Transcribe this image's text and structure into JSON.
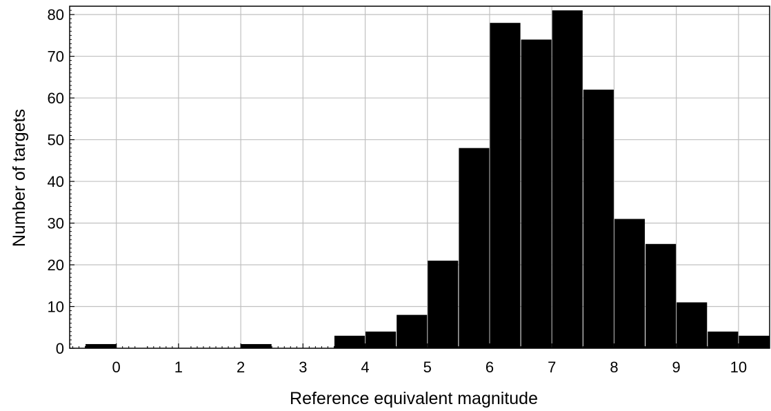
{
  "chart_data": {
    "type": "bar",
    "title": "",
    "xlabel": "Reference equivalent magnitude",
    "ylabel": "Number of targets",
    "xlim": [
      -0.75,
      10.5
    ],
    "ylim": [
      0,
      82
    ],
    "xticks": [
      0,
      1,
      2,
      3,
      4,
      5,
      6,
      7,
      8,
      9,
      10
    ],
    "xtick_labels": [
      "0",
      "1",
      "2",
      "3",
      "4",
      "5",
      "6",
      "7",
      "8",
      "9",
      "10"
    ],
    "yticks": [
      0,
      10,
      20,
      30,
      40,
      50,
      60,
      70,
      80
    ],
    "ytick_labels": [
      "0",
      "10",
      "20",
      "30",
      "40",
      "50",
      "60",
      "70",
      "80"
    ],
    "bin_width": 0.5,
    "bin_starts": [
      -0.5,
      0.0,
      0.5,
      1.0,
      1.5,
      2.0,
      2.5,
      3.0,
      3.5,
      4.0,
      4.5,
      5.0,
      5.5,
      6.0,
      6.5,
      7.0,
      7.5,
      8.0,
      8.5,
      9.0,
      9.5,
      10.0
    ],
    "values": [
      1,
      0,
      0,
      0,
      0,
      1,
      0,
      0,
      3,
      4,
      8,
      21,
      48,
      78,
      74,
      81,
      62,
      31,
      25,
      11,
      4,
      3
    ],
    "grid": true,
    "bar_color": "#000000",
    "grid_color": "#c0c0c0"
  }
}
